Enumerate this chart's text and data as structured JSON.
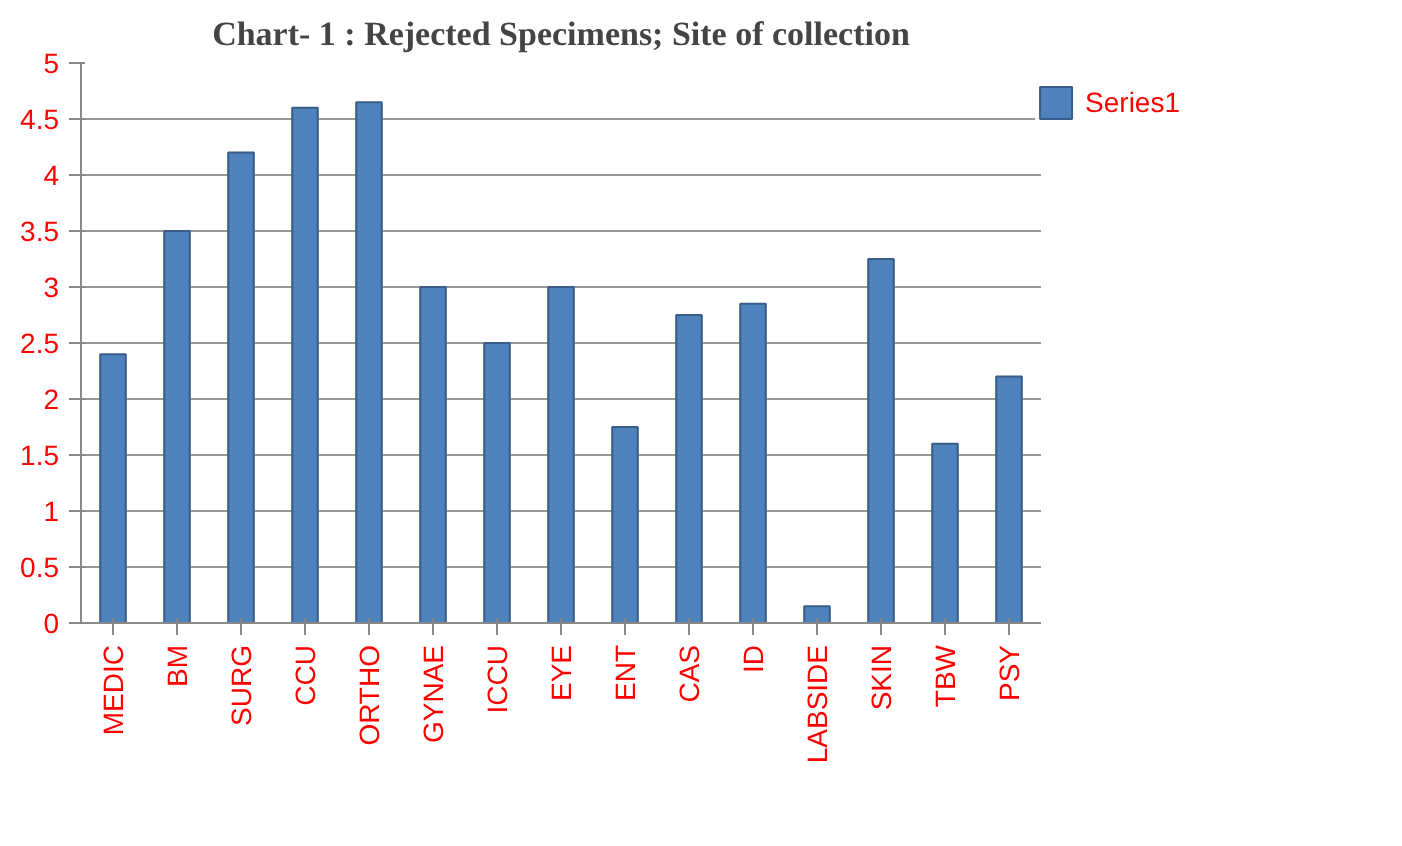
{
  "chart_data": {
    "type": "bar",
    "title": "Chart- 1 : Rejected Specimens; Site of collection",
    "categories": [
      "MEDIC",
      "BM",
      "SURG",
      "CCU",
      "ORTHO",
      "GYNAE",
      "ICCU",
      "EYE",
      "ENT",
      "CAS",
      "ID",
      "LABSIDE",
      "SKIN",
      "TBW",
      "PSY"
    ],
    "series": [
      {
        "name": "Series1",
        "color": "#4f81bd",
        "values": [
          2.4,
          3.5,
          4.2,
          4.6,
          4.65,
          3.0,
          2.5,
          3.0,
          1.75,
          2.75,
          2.85,
          0.15,
          3.25,
          1.6,
          2.2
        ]
      }
    ],
    "ylim": [
      0,
      5
    ],
    "yticks": [
      0,
      0.5,
      1,
      1.5,
      2,
      2.5,
      3,
      3.5,
      4,
      4.5,
      5
    ],
    "grid": "y",
    "legend": "right"
  }
}
